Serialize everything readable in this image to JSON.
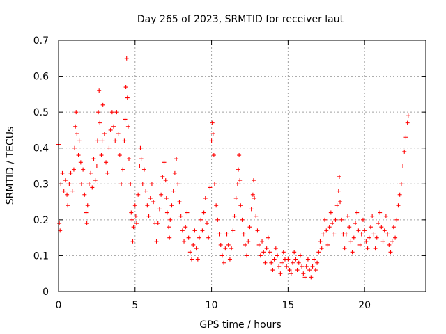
{
  "chart_data": {
    "type": "scatter",
    "title": "Day 265 of 2023, SRMTID for receiver laut",
    "xlabel": "GPS time / hours",
    "ylabel": "SRMTID / TECUs",
    "xlim": [
      0,
      24
    ],
    "ylim": [
      0,
      0.7
    ],
    "xticks": [
      0,
      5,
      10,
      15,
      20
    ],
    "yticks": [
      0,
      0.1,
      0.2,
      0.3,
      0.4,
      0.5,
      0.6,
      0.7
    ],
    "xtick_labels": [
      "0",
      "5",
      "10",
      "15",
      "20"
    ],
    "ytick_labels": [
      "0",
      "0.1",
      "0.2",
      "0.3",
      "0.4",
      "0.5",
      "0.6",
      "0.7"
    ],
    "grid": true,
    "marker": "+",
    "color": "#ff0000",
    "series": [
      {
        "name": "laut",
        "points": [
          [
            0.0,
            0.41
          ],
          [
            0.05,
            0.19
          ],
          [
            0.1,
            0.17
          ],
          [
            0.15,
            0.3
          ],
          [
            0.25,
            0.33
          ],
          [
            0.35,
            0.28
          ],
          [
            0.45,
            0.31
          ],
          [
            0.55,
            0.27
          ],
          [
            0.6,
            0.24
          ],
          [
            0.7,
            0.3
          ],
          [
            0.8,
            0.33
          ],
          [
            0.9,
            0.28
          ],
          [
            1.0,
            0.34
          ],
          [
            1.05,
            0.4
          ],
          [
            1.1,
            0.46
          ],
          [
            1.15,
            0.5
          ],
          [
            1.2,
            0.44
          ],
          [
            1.3,
            0.38
          ],
          [
            1.35,
            0.42
          ],
          [
            1.45,
            0.36
          ],
          [
            1.5,
            0.3
          ],
          [
            1.6,
            0.34
          ],
          [
            1.7,
            0.27
          ],
          [
            1.8,
            0.22
          ],
          [
            1.85,
            0.19
          ],
          [
            1.9,
            0.24
          ],
          [
            2.0,
            0.3
          ],
          [
            2.1,
            0.33
          ],
          [
            2.2,
            0.29
          ],
          [
            2.3,
            0.37
          ],
          [
            2.4,
            0.31
          ],
          [
            2.5,
            0.35
          ],
          [
            2.55,
            0.42
          ],
          [
            2.6,
            0.5
          ],
          [
            2.65,
            0.56
          ],
          [
            2.7,
            0.47
          ],
          [
            2.8,
            0.38
          ],
          [
            2.85,
            0.42
          ],
          [
            2.9,
            0.52
          ],
          [
            3.0,
            0.44
          ],
          [
            3.1,
            0.36
          ],
          [
            3.2,
            0.33
          ],
          [
            3.3,
            0.4
          ],
          [
            3.4,
            0.45
          ],
          [
            3.5,
            0.5
          ],
          [
            3.6,
            0.46
          ],
          [
            3.7,
            0.42
          ],
          [
            3.8,
            0.5
          ],
          [
            3.9,
            0.44
          ],
          [
            4.0,
            0.38
          ],
          [
            4.1,
            0.3
          ],
          [
            4.2,
            0.34
          ],
          [
            4.3,
            0.42
          ],
          [
            4.35,
            0.48
          ],
          [
            4.4,
            0.57
          ],
          [
            4.45,
            0.65
          ],
          [
            4.5,
            0.54
          ],
          [
            4.55,
            0.46
          ],
          [
            4.6,
            0.37
          ],
          [
            4.7,
            0.3
          ],
          [
            4.75,
            0.22
          ],
          [
            4.8,
            0.2
          ],
          [
            4.85,
            0.14
          ],
          [
            4.9,
            0.18
          ],
          [
            5.0,
            0.24
          ],
          [
            5.05,
            0.21
          ],
          [
            5.1,
            0.19
          ],
          [
            5.2,
            0.27
          ],
          [
            5.3,
            0.35
          ],
          [
            5.35,
            0.4
          ],
          [
            5.4,
            0.37
          ],
          [
            5.5,
            0.3
          ],
          [
            5.6,
            0.34
          ],
          [
            5.7,
            0.28
          ],
          [
            5.8,
            0.24
          ],
          [
            5.9,
            0.21
          ],
          [
            6.0,
            0.26
          ],
          [
            6.1,
            0.3
          ],
          [
            6.2,
            0.25
          ],
          [
            6.3,
            0.19
          ],
          [
            6.4,
            0.14
          ],
          [
            6.5,
            0.19
          ],
          [
            6.6,
            0.23
          ],
          [
            6.7,
            0.27
          ],
          [
            6.8,
            0.32
          ],
          [
            6.9,
            0.36
          ],
          [
            7.0,
            0.31
          ],
          [
            7.05,
            0.26
          ],
          [
            7.1,
            0.22
          ],
          [
            7.2,
            0.18
          ],
          [
            7.25,
            0.15
          ],
          [
            7.3,
            0.2
          ],
          [
            7.4,
            0.24
          ],
          [
            7.5,
            0.28
          ],
          [
            7.6,
            0.33
          ],
          [
            7.7,
            0.37
          ],
          [
            7.8,
            0.3
          ],
          [
            7.9,
            0.25
          ],
          [
            8.0,
            0.21
          ],
          [
            8.1,
            0.17
          ],
          [
            8.2,
            0.14
          ],
          [
            8.3,
            0.18
          ],
          [
            8.4,
            0.22
          ],
          [
            8.5,
            0.15
          ],
          [
            8.6,
            0.11
          ],
          [
            8.7,
            0.09
          ],
          [
            8.8,
            0.13
          ],
          [
            8.9,
            0.17
          ],
          [
            9.0,
            0.12
          ],
          [
            9.1,
            0.09
          ],
          [
            9.2,
            0.15
          ],
          [
            9.3,
            0.2
          ],
          [
            9.4,
            0.17
          ],
          [
            9.5,
            0.22
          ],
          [
            9.6,
            0.26
          ],
          [
            9.7,
            0.19
          ],
          [
            9.8,
            0.15
          ],
          [
            9.9,
            0.29
          ],
          [
            10.0,
            0.42
          ],
          [
            10.05,
            0.47
          ],
          [
            10.1,
            0.44
          ],
          [
            10.15,
            0.38
          ],
          [
            10.2,
            0.3
          ],
          [
            10.3,
            0.24
          ],
          [
            10.4,
            0.2
          ],
          [
            10.5,
            0.16
          ],
          [
            10.6,
            0.13
          ],
          [
            10.7,
            0.1
          ],
          [
            10.8,
            0.08
          ],
          [
            10.9,
            0.12
          ],
          [
            11.0,
            0.16
          ],
          [
            11.1,
            0.13
          ],
          [
            11.2,
            0.09
          ],
          [
            11.3,
            0.12
          ],
          [
            11.4,
            0.17
          ],
          [
            11.5,
            0.21
          ],
          [
            11.6,
            0.26
          ],
          [
            11.7,
            0.3
          ],
          [
            11.75,
            0.34
          ],
          [
            11.8,
            0.38
          ],
          [
            11.85,
            0.31
          ],
          [
            11.9,
            0.24
          ],
          [
            12.0,
            0.2
          ],
          [
            12.1,
            0.16
          ],
          [
            12.2,
            0.13
          ],
          [
            12.3,
            0.1
          ],
          [
            12.4,
            0.14
          ],
          [
            12.5,
            0.18
          ],
          [
            12.6,
            0.23
          ],
          [
            12.7,
            0.27
          ],
          [
            12.75,
            0.31
          ],
          [
            12.8,
            0.26
          ],
          [
            12.9,
            0.21
          ],
          [
            13.0,
            0.17
          ],
          [
            13.1,
            0.13
          ],
          [
            13.2,
            0.1
          ],
          [
            13.3,
            0.14
          ],
          [
            13.4,
            0.11
          ],
          [
            13.5,
            0.08
          ],
          [
            13.6,
            0.12
          ],
          [
            13.7,
            0.15
          ],
          [
            13.8,
            0.11
          ],
          [
            13.9,
            0.08
          ],
          [
            14.0,
            0.06
          ],
          [
            14.1,
            0.09
          ],
          [
            14.2,
            0.12
          ],
          [
            14.3,
            0.1
          ],
          [
            14.4,
            0.07
          ],
          [
            14.5,
            0.05
          ],
          [
            14.6,
            0.08
          ],
          [
            14.7,
            0.11
          ],
          [
            14.8,
            0.09
          ],
          [
            14.9,
            0.07
          ],
          [
            15.0,
            0.09
          ],
          [
            15.1,
            0.06
          ],
          [
            15.2,
            0.05
          ],
          [
            15.3,
            0.08
          ],
          [
            15.4,
            0.11
          ],
          [
            15.5,
            0.09
          ],
          [
            15.6,
            0.06
          ],
          [
            15.7,
            0.08
          ],
          [
            15.8,
            0.1
          ],
          [
            15.9,
            0.07
          ],
          [
            16.0,
            0.05
          ],
          [
            16.1,
            0.04
          ],
          [
            16.2,
            0.07
          ],
          [
            16.3,
            0.09
          ],
          [
            16.4,
            0.06
          ],
          [
            16.5,
            0.04
          ],
          [
            16.6,
            0.07
          ],
          [
            16.7,
            0.09
          ],
          [
            16.8,
            0.06
          ],
          [
            16.9,
            0.08
          ],
          [
            17.0,
            0.11
          ],
          [
            17.1,
            0.14
          ],
          [
            17.2,
            0.12
          ],
          [
            17.3,
            0.16
          ],
          [
            17.4,
            0.2
          ],
          [
            17.5,
            0.17
          ],
          [
            17.6,
            0.13
          ],
          [
            17.7,
            0.18
          ],
          [
            17.8,
            0.22
          ],
          [
            17.9,
            0.19
          ],
          [
            18.0,
            0.16
          ],
          [
            18.1,
            0.2
          ],
          [
            18.2,
            0.24
          ],
          [
            18.3,
            0.28
          ],
          [
            18.35,
            0.32
          ],
          [
            18.4,
            0.25
          ],
          [
            18.5,
            0.2
          ],
          [
            18.6,
            0.16
          ],
          [
            18.7,
            0.12
          ],
          [
            18.8,
            0.16
          ],
          [
            18.9,
            0.21
          ],
          [
            19.0,
            0.18
          ],
          [
            19.1,
            0.14
          ],
          [
            19.2,
            0.11
          ],
          [
            19.3,
            0.15
          ],
          [
            19.4,
            0.19
          ],
          [
            19.5,
            0.22
          ],
          [
            19.6,
            0.17
          ],
          [
            19.7,
            0.13
          ],
          [
            19.8,
            0.16
          ],
          [
            19.9,
            0.2
          ],
          [
            20.0,
            0.17
          ],
          [
            20.1,
            0.14
          ],
          [
            20.2,
            0.12
          ],
          [
            20.3,
            0.15
          ],
          [
            20.4,
            0.18
          ],
          [
            20.5,
            0.21
          ],
          [
            20.6,
            0.16
          ],
          [
            20.7,
            0.12
          ],
          [
            20.8,
            0.15
          ],
          [
            20.9,
            0.19
          ],
          [
            21.0,
            0.22
          ],
          [
            21.1,
            0.18
          ],
          [
            21.2,
            0.14
          ],
          [
            21.3,
            0.17
          ],
          [
            21.4,
            0.21
          ],
          [
            21.5,
            0.16
          ],
          [
            21.6,
            0.13
          ],
          [
            21.7,
            0.11
          ],
          [
            21.8,
            0.14
          ],
          [
            21.9,
            0.18
          ],
          [
            22.0,
            0.15
          ],
          [
            22.1,
            0.2
          ],
          [
            22.2,
            0.24
          ],
          [
            22.3,
            0.27
          ],
          [
            22.4,
            0.3
          ],
          [
            22.5,
            0.35
          ],
          [
            22.6,
            0.39
          ],
          [
            22.7,
            0.43
          ],
          [
            22.8,
            0.47
          ],
          [
            22.85,
            0.49
          ]
        ]
      }
    ]
  }
}
